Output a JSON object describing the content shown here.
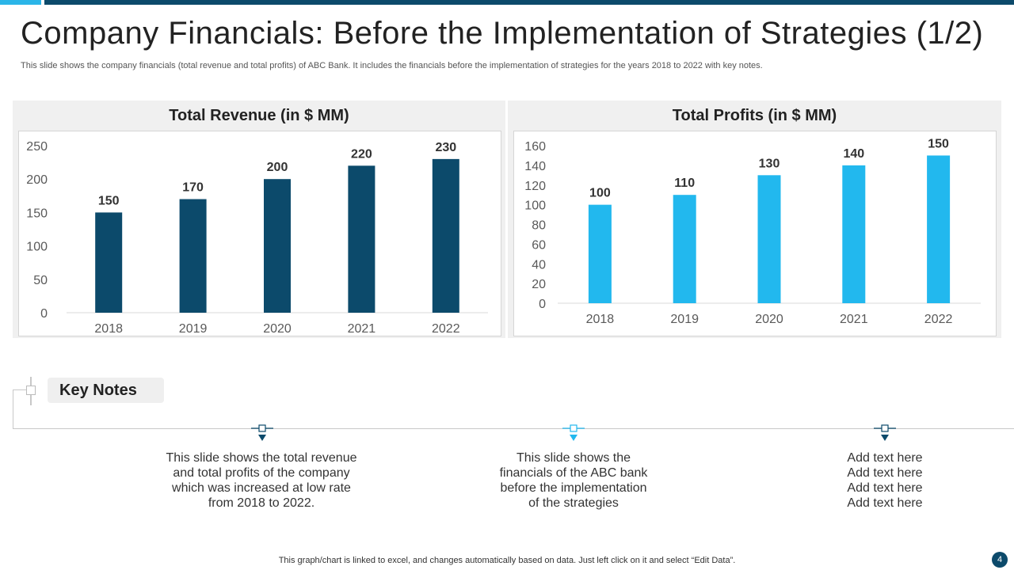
{
  "slide": {
    "title": "Company Financials: Before the Implementation of Strategies (1/2)",
    "subtitle": "This slide shows the company financials (total revenue and total profits) of ABC Bank. It includes the financials before the implementation of strategies for the years 2018 to 2022 with key notes.",
    "footer": "This graph/chart is linked to excel, and changes automatically based on data. Just left click on it and select “Edit Data”.",
    "page_number": "4"
  },
  "colors": {
    "dark_blue": "#0c4a6b",
    "light_blue": "#22b8ee"
  },
  "chart_data": [
    {
      "type": "bar",
      "title": "Total Revenue (in $ MM)",
      "categories": [
        "2018",
        "2019",
        "2020",
        "2021",
        "2022"
      ],
      "values": [
        150,
        170,
        200,
        220,
        230
      ],
      "ylim": [
        0,
        250
      ],
      "yticks": [
        0,
        50,
        100,
        150,
        200,
        250
      ],
      "xlabel": "",
      "ylabel": "",
      "color": "#0c4a6b"
    },
    {
      "type": "bar",
      "title": "Total Profits (in $ MM)",
      "categories": [
        "2018",
        "2019",
        "2020",
        "2021",
        "2022"
      ],
      "values": [
        100,
        110,
        130,
        140,
        150
      ],
      "ylim": [
        0,
        160
      ],
      "yticks": [
        0,
        20,
        40,
        60,
        80,
        100,
        120,
        140,
        160
      ],
      "xlabel": "",
      "ylabel": "",
      "color": "#22b8ee"
    }
  ],
  "key_notes": {
    "label": "Key Notes",
    "notes": [
      {
        "lines": [
          "This slide shows the total revenue",
          "and total profits of the company",
          "which was increased at low rate",
          "from 2018 to 2022."
        ]
      },
      {
        "lines": [
          "This slide shows the",
          "financials of the ABC bank",
          "before the implementation",
          "of the strategies"
        ]
      },
      {
        "lines": [
          "Add text here",
          "Add text here",
          "Add text here",
          "Add text here"
        ]
      }
    ]
  }
}
